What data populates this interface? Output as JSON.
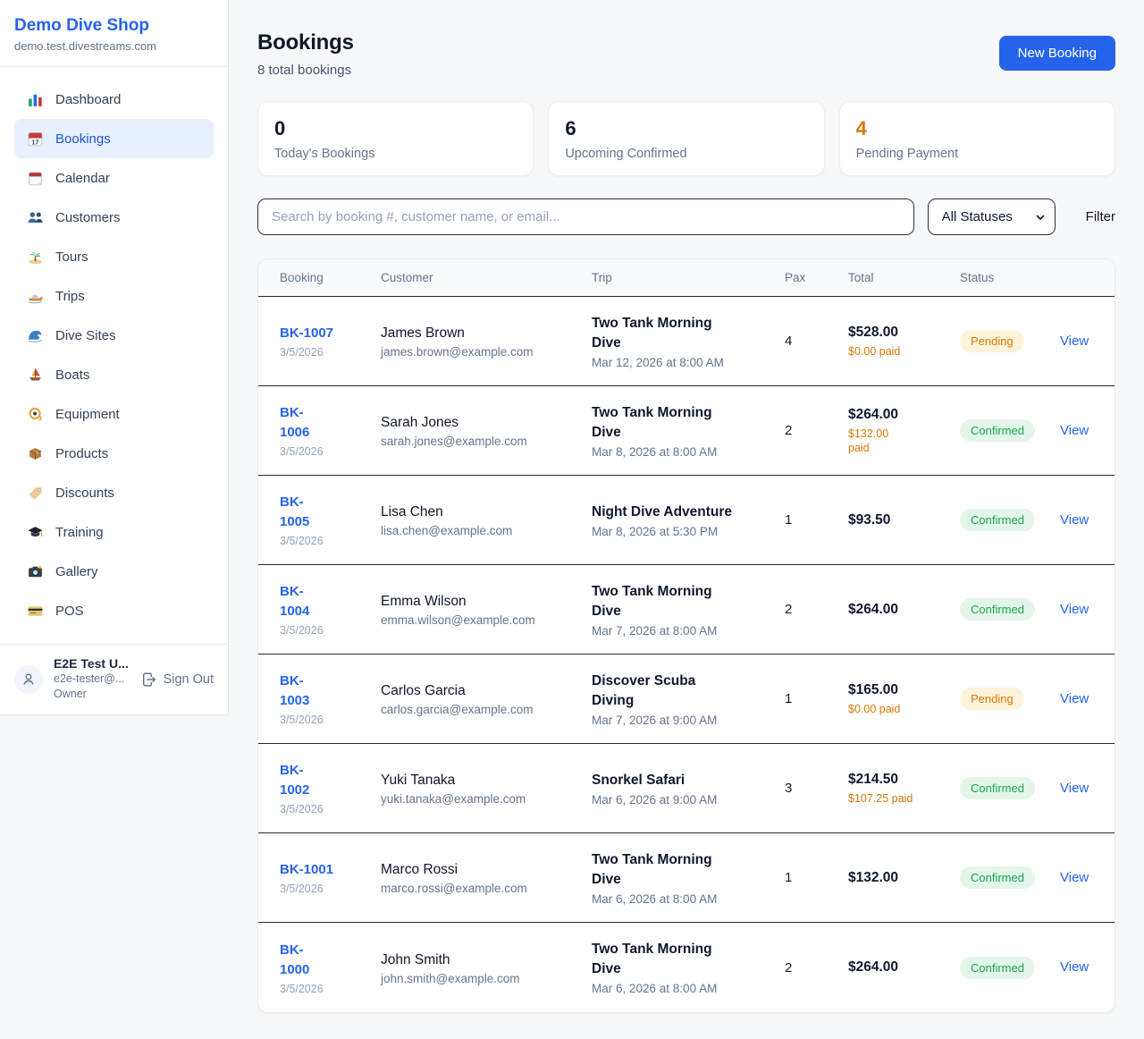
{
  "sidebar": {
    "brand": {
      "name": "Demo Dive Shop",
      "domain": "demo.test.divestreams.com"
    },
    "items": [
      {
        "icon": "bar-chart-icon",
        "label": "Dashboard",
        "active": false
      },
      {
        "icon": "calendar-icon",
        "label": "Bookings",
        "active": true
      },
      {
        "icon": "tearoff-calendar-icon",
        "label": "Calendar",
        "active": false
      },
      {
        "icon": "people-icon",
        "label": "Customers",
        "active": false
      },
      {
        "icon": "island-icon",
        "label": "Tours",
        "active": false
      },
      {
        "icon": "speedboat-icon",
        "label": "Trips",
        "active": false
      },
      {
        "icon": "wave-icon",
        "label": "Dive Sites",
        "active": false
      },
      {
        "icon": "sailboat-icon",
        "label": "Boats",
        "active": false
      },
      {
        "icon": "dive-mask-icon",
        "label": "Equipment",
        "active": false
      },
      {
        "icon": "package-icon",
        "label": "Products",
        "active": false
      },
      {
        "icon": "tag-icon",
        "label": "Discounts",
        "active": false
      },
      {
        "icon": "grad-cap-icon",
        "label": "Training",
        "active": false
      },
      {
        "icon": "camera-icon",
        "label": "Gallery",
        "active": false
      },
      {
        "icon": "credit-card-icon",
        "label": "POS",
        "active": false
      }
    ],
    "user": {
      "name": "E2E Test U...",
      "email": "e2e-tester@...",
      "role": "Owner",
      "signout_label": "Sign Out"
    }
  },
  "header": {
    "title": "Bookings",
    "subtitle": "8 total bookings",
    "new_booking_label": "New Booking"
  },
  "stats": [
    {
      "value": "0",
      "label": "Today's Bookings",
      "highlight": false
    },
    {
      "value": "6",
      "label": "Upcoming Confirmed",
      "highlight": false
    },
    {
      "value": "4",
      "label": "Pending Payment",
      "highlight": true
    }
  ],
  "filters": {
    "search_placeholder": "Search by booking #, customer name, or email...",
    "status_selected": "All Statuses",
    "filter_label": "Filter"
  },
  "table": {
    "columns": [
      "Booking",
      "Customer",
      "Trip",
      "Pax",
      "Total",
      "Status"
    ],
    "view_label": "View",
    "rows": [
      {
        "booking_id": "BK-1007",
        "booking_date": "3/5/2026",
        "customer_name": "James Brown",
        "customer_email": "james.brown@example.com",
        "trip_name": "Two Tank Morning\nDive",
        "trip_datetime": "Mar 12, 2026 at 8:00 AM",
        "pax": "4",
        "total": "$528.00",
        "paid": "$0.00 paid",
        "status": "Pending"
      },
      {
        "booking_id": "BK-\n1006",
        "booking_date": "3/5/2026",
        "customer_name": "Sarah Jones",
        "customer_email": "sarah.jones@example.com",
        "trip_name": "Two Tank Morning\nDive",
        "trip_datetime": "Mar 8, 2026 at 8:00 AM",
        "pax": "2",
        "total": "$264.00",
        "paid": "$132.00\npaid",
        "status": "Confirmed"
      },
      {
        "booking_id": "BK-\n1005",
        "booking_date": "3/5/2026",
        "customer_name": "Lisa Chen",
        "customer_email": "lisa.chen@example.com",
        "trip_name": "Night Dive Adventure",
        "trip_datetime": "Mar 8, 2026 at 5:30 PM",
        "pax": "1",
        "total": "$93.50",
        "paid": null,
        "status": "Confirmed"
      },
      {
        "booking_id": "BK-\n1004",
        "booking_date": "3/5/2026",
        "customer_name": "Emma Wilson",
        "customer_email": "emma.wilson@example.com",
        "trip_name": "Two Tank Morning\nDive",
        "trip_datetime": "Mar 7, 2026 at 8:00 AM",
        "pax": "2",
        "total": "$264.00",
        "paid": null,
        "status": "Confirmed"
      },
      {
        "booking_id": "BK-\n1003",
        "booking_date": "3/5/2026",
        "customer_name": "Carlos Garcia",
        "customer_email": "carlos.garcia@example.com",
        "trip_name": "Discover Scuba\nDiving",
        "trip_datetime": "Mar 7, 2026 at 9:00 AM",
        "pax": "1",
        "total": "$165.00",
        "paid": "$0.00 paid",
        "status": "Pending"
      },
      {
        "booking_id": "BK-\n1002",
        "booking_date": "3/5/2026",
        "customer_name": "Yuki Tanaka",
        "customer_email": "yuki.tanaka@example.com",
        "trip_name": "Snorkel Safari",
        "trip_datetime": "Mar 6, 2026 at 9:00 AM",
        "pax": "3",
        "total": "$214.50",
        "paid": "$107.25 paid",
        "status": "Confirmed"
      },
      {
        "booking_id": "BK-1001",
        "booking_date": "3/5/2026",
        "customer_name": "Marco Rossi",
        "customer_email": "marco.rossi@example.com",
        "trip_name": "Two Tank Morning\nDive",
        "trip_datetime": "Mar 6, 2026 at 8:00 AM",
        "pax": "1",
        "total": "$132.00",
        "paid": null,
        "status": "Confirmed"
      },
      {
        "booking_id": "BK-\n1000",
        "booking_date": "3/5/2026",
        "customer_name": "John Smith",
        "customer_email": "john.smith@example.com",
        "trip_name": "Two Tank Morning\nDive",
        "trip_datetime": "Mar 6, 2026 at 8:00 AM",
        "pax": "2",
        "total": "$264.00",
        "paid": null,
        "status": "Confirmed"
      }
    ]
  },
  "colors": {
    "accent": "#2563eb",
    "pending_text": "#d97706",
    "pending_bg": "#fdf3da",
    "confirmed_text": "#16a34a",
    "confirmed_bg": "#e4f6ea"
  }
}
